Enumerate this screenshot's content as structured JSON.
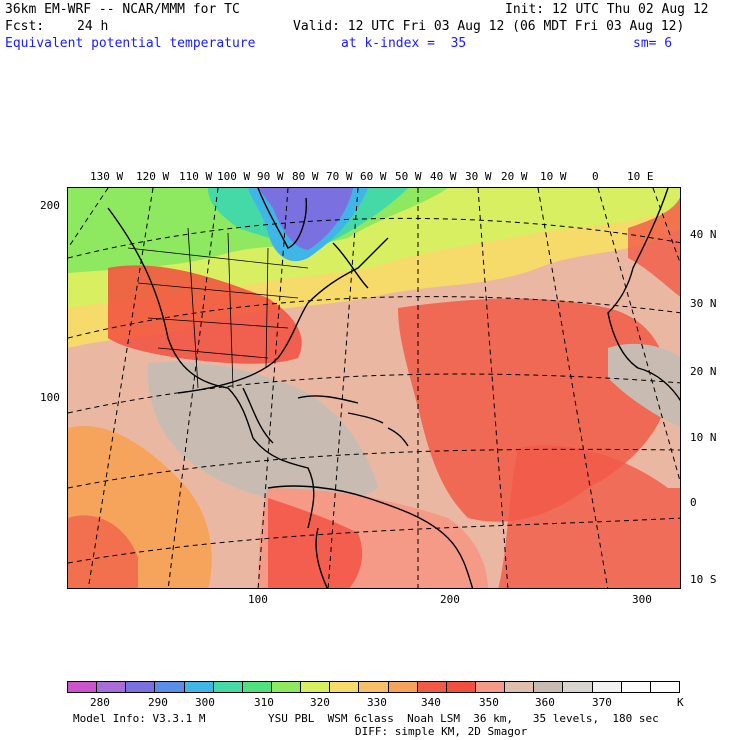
{
  "header": {
    "model": "36km EM-WRF -- NCAR/MMM for TC",
    "init": "Init: 12 UTC Thu 02 Aug 12",
    "fcst_label": "Fcst:",
    "fcst_value": "24 h",
    "valid": "Valid: 12 UTC Fri 03 Aug 12 (06 MDT Fri 03 Aug 12)",
    "field": "Equivalent potential temperature",
    "level": "at k-index =  35",
    "smoothing": "sm= 6"
  },
  "map": {
    "lon_labels": [
      "130 W",
      "120 W",
      "110 W",
      "100 W",
      "90 W",
      "80 W",
      "70 W",
      "60 W",
      "50 W",
      "40 W",
      "30 W",
      "20 W",
      "10 W",
      "0",
      "10 E"
    ],
    "lat_labels": [
      "40 N",
      "30 N",
      "20 N",
      "10 N",
      "0",
      "10 S"
    ],
    "y_ticks": [
      "200",
      "100"
    ],
    "x_ticks": [
      "100",
      "200",
      "300"
    ]
  },
  "legend": {
    "colors": [
      "#cc55cc",
      "#a86dd6",
      "#7b70e0",
      "#5b8ee6",
      "#3fb6e6",
      "#44d9a6",
      "#4fe080",
      "#8ee860",
      "#d7ef60",
      "#f6db6a",
      "#f8bf69",
      "#f6a35c",
      "#f15a47",
      "#f24f41",
      "#f49a86",
      "#dfbfac",
      "#c8bcb2",
      "#d8d4d0",
      "#f2f2f2",
      "#ffffff",
      "#ffffff"
    ],
    "labels": [
      "280",
      "290",
      "300",
      "310",
      "320",
      "330",
      "340",
      "350",
      "360",
      "370",
      "K"
    ]
  },
  "footer": {
    "model_info": "Model Info: V3.3.1 M",
    "physics": "YSU PBL  WSM 6class  Noah LSM  36 km,   35 levels,  180 sec",
    "diffusion": "DIFF: simple KM, 2D Smagor"
  }
}
